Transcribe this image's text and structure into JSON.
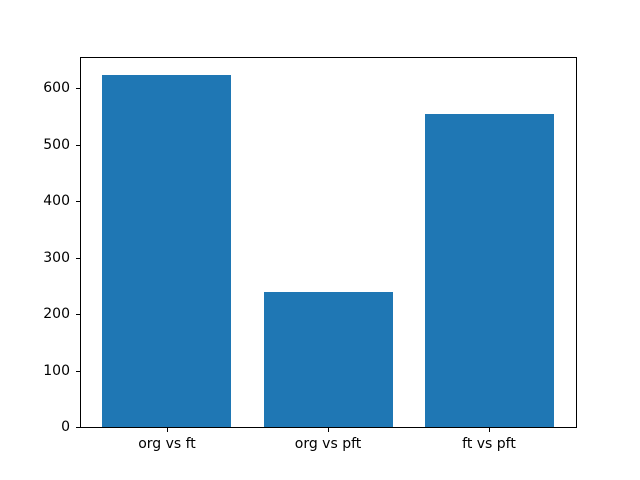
{
  "chart_data": {
    "type": "bar",
    "title": "",
    "xlabel": "",
    "ylabel": "",
    "categories": [
      "org vs ft",
      "org vs pft",
      "ft vs pft"
    ],
    "values": [
      623,
      240,
      555
    ],
    "yticks": [
      0,
      100,
      200,
      300,
      400,
      500,
      600
    ],
    "ylim": [
      0,
      654
    ],
    "xlim": [
      -0.54,
      2.54
    ],
    "bar_width_fraction": 0.8,
    "bar_color": "#1f77b4",
    "axes_edge_color": "#000000",
    "tick_label_color": "#000000",
    "background_color": "#ffffff",
    "grid": false,
    "legend": null
  }
}
